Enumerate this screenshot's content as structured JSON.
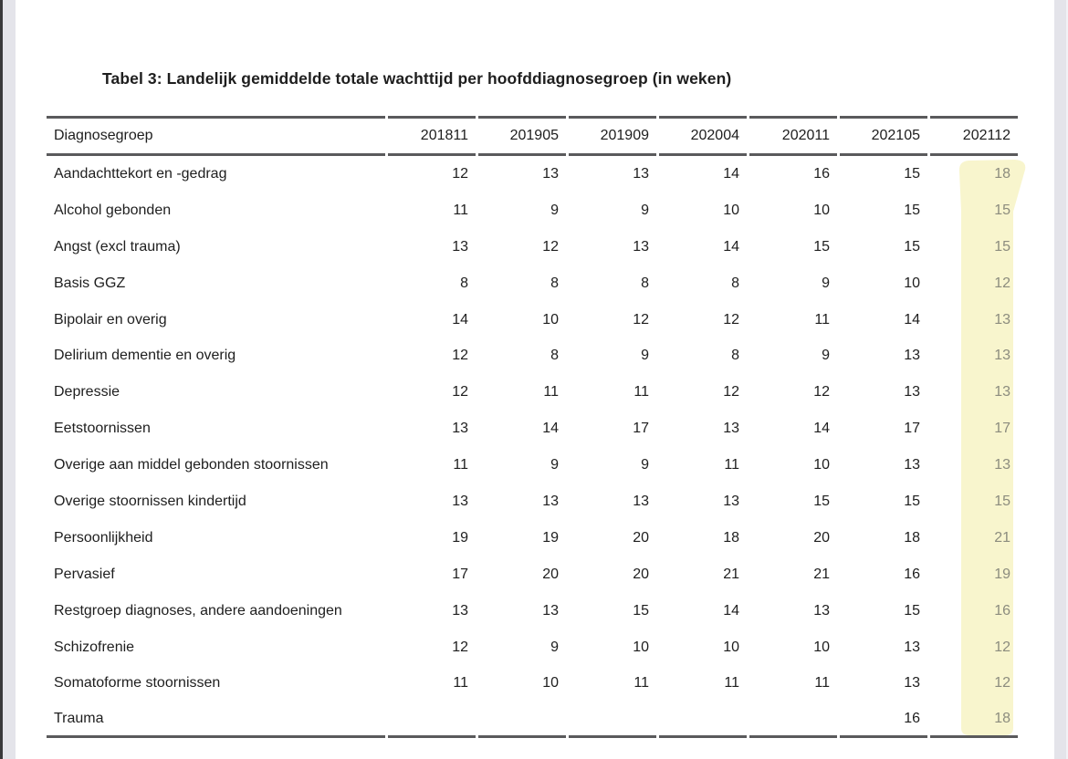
{
  "colors": {
    "page-bg": "#ffffff",
    "text": "#1e1e1e",
    "rule": "#5a5a5c",
    "highlight": "#f8f4ca",
    "highlight-text": "#8c8c7e",
    "edge-dark": "#39393b",
    "edge-gray": "#e4e4ea"
  },
  "document": {
    "title": "Tabel 3: Landelijk gemiddelde totale wachttijd per hoofddiagnosegroep (in weken)"
  },
  "table": {
    "columns": [
      "Diagnosegroep",
      "201811",
      "201905",
      "201909",
      "202004",
      "202011",
      "202105",
      "202112"
    ],
    "highlighted_column": "202112",
    "rows": [
      {
        "label": "Aandachttekort en -gedrag",
        "values": [
          "12",
          "13",
          "13",
          "14",
          "16",
          "15",
          "18"
        ]
      },
      {
        "label": "Alcohol gebonden",
        "values": [
          "11",
          "9",
          "9",
          "10",
          "10",
          "15",
          "15"
        ]
      },
      {
        "label": "Angst (excl trauma)",
        "values": [
          "13",
          "12",
          "13",
          "14",
          "15",
          "15",
          "15"
        ]
      },
      {
        "label": "Basis GGZ",
        "values": [
          "8",
          "8",
          "8",
          "8",
          "9",
          "10",
          "12"
        ]
      },
      {
        "label": "Bipolair en overig",
        "values": [
          "14",
          "10",
          "12",
          "12",
          "11",
          "14",
          "13"
        ]
      },
      {
        "label": "Delirium dementie en overig",
        "values": [
          "12",
          "8",
          "9",
          "8",
          "9",
          "13",
          "13"
        ]
      },
      {
        "label": "Depressie",
        "values": [
          "12",
          "11",
          "11",
          "12",
          "12",
          "13",
          "13"
        ]
      },
      {
        "label": "Eetstoornissen",
        "values": [
          "13",
          "14",
          "17",
          "13",
          "14",
          "17",
          "17"
        ]
      },
      {
        "label": "Overige aan middel gebonden stoornissen",
        "values": [
          "11",
          "9",
          "9",
          "11",
          "10",
          "13",
          "13"
        ]
      },
      {
        "label": "Overige stoornissen kindertijd",
        "values": [
          "13",
          "13",
          "13",
          "13",
          "15",
          "15",
          "15"
        ]
      },
      {
        "label": "Persoonlijkheid",
        "values": [
          "19",
          "19",
          "20",
          "18",
          "20",
          "18",
          "21"
        ]
      },
      {
        "label": "Pervasief",
        "values": [
          "17",
          "20",
          "20",
          "21",
          "21",
          "16",
          "19"
        ]
      },
      {
        "label": "Restgroep diagnoses, andere aandoeningen",
        "values": [
          "13",
          "13",
          "15",
          "14",
          "13",
          "15",
          "16"
        ]
      },
      {
        "label": "Schizofrenie",
        "values": [
          "12",
          "9",
          "10",
          "10",
          "10",
          "13",
          "12"
        ]
      },
      {
        "label": "Somatoforme stoornissen",
        "values": [
          "11",
          "10",
          "11",
          "11",
          "11",
          "13",
          "12"
        ]
      },
      {
        "label": "Trauma",
        "values": [
          "",
          "",
          "",
          "",
          "",
          "16",
          "18"
        ]
      }
    ]
  }
}
